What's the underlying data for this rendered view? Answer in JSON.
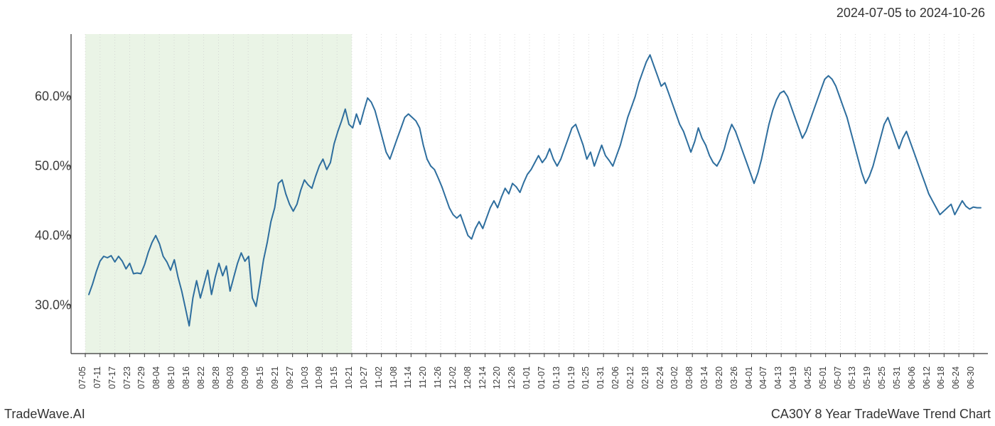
{
  "header": {
    "date_range": "2024-07-05 to 2024-10-26"
  },
  "footer": {
    "left": "TradeWave.AI",
    "right": "CA30Y 8 Year TradeWave Trend Chart"
  },
  "chart": {
    "type": "line",
    "background_color": "#ffffff",
    "line_color": "#2e6e9e",
    "line_width": 2.0,
    "highlight": {
      "fill": "#dfeed8",
      "opacity": 0.65,
      "x_start_index": 0,
      "x_end_index": 18
    },
    "axis": {
      "spine_color": "#333333",
      "spine_width": 1.2,
      "show_top": false,
      "show_right": false,
      "grid_color": "#cfcfcf",
      "grid_dash": "1,3",
      "grid_width": 0.8
    },
    "y": {
      "min": 23.0,
      "max": 69.0,
      "ticks": [
        30.0,
        40.0,
        50.0,
        60.0
      ],
      "tick_labels": [
        "30.0%",
        "40.0%",
        "50.0%",
        "60.0%"
      ],
      "label_fontsize": 18,
      "label_color": "#3b3b3b"
    },
    "x": {
      "labels": [
        "07-05",
        "07-11",
        "07-17",
        "07-23",
        "07-29",
        "08-04",
        "08-10",
        "08-16",
        "08-22",
        "08-28",
        "09-03",
        "09-09",
        "09-15",
        "09-21",
        "09-27",
        "10-03",
        "10-09",
        "10-15",
        "10-21",
        "10-27",
        "11-02",
        "11-08",
        "11-14",
        "11-20",
        "11-26",
        "12-02",
        "12-08",
        "12-14",
        "12-20",
        "12-26",
        "01-01",
        "01-07",
        "01-13",
        "01-19",
        "01-25",
        "01-31",
        "02-06",
        "02-12",
        "02-18",
        "02-24",
        "03-02",
        "03-08",
        "03-14",
        "03-20",
        "03-26",
        "04-01",
        "04-07",
        "04-13",
        "04-19",
        "04-25",
        "05-01",
        "05-07",
        "05-13",
        "05-19",
        "05-25",
        "05-31",
        "06-06",
        "06-12",
        "06-18",
        "06-24",
        "06-30"
      ],
      "label_fontsize": 12.5,
      "label_color": "#3b3b3b",
      "rotation": -90
    },
    "series": {
      "values": [
        31.5,
        33.0,
        34.8,
        36.3,
        37.0,
        36.8,
        37.1,
        36.2,
        37.0,
        36.3,
        35.2,
        36.0,
        34.5,
        34.6,
        34.5,
        35.8,
        37.6,
        39.0,
        40.0,
        38.8,
        37.0,
        36.2,
        35.0,
        36.5,
        34.0,
        32.0,
        29.5,
        27.0,
        31.0,
        33.5,
        31.0,
        33.0,
        35.0,
        31.5,
        34.0,
        36.0,
        34.2,
        35.6,
        32.0,
        34.0,
        36.0,
        37.5,
        36.3,
        37.0,
        31.0,
        29.8,
        33.0,
        36.5,
        39.0,
        42.0,
        44.0,
        47.5,
        48.0,
        46.0,
        44.5,
        43.5,
        44.5,
        46.5,
        48.0,
        47.3,
        46.8,
        48.5,
        50.0,
        51.0,
        49.5,
        50.5,
        53.2,
        55.0,
        56.5,
        58.2,
        56.0,
        55.5,
        57.5,
        56.0,
        58.0,
        59.8,
        59.2,
        58.0,
        56.0,
        54.0,
        52.0,
        51.0,
        52.5,
        54.0,
        55.5,
        57.0,
        57.5,
        57.0,
        56.5,
        55.5,
        53.0,
        51.0,
        50.0,
        49.5,
        48.3,
        47.0,
        45.5,
        44.0,
        43.0,
        42.5,
        43.0,
        41.5,
        40.0,
        39.5,
        41.0,
        42.0,
        41.0,
        42.5,
        44.0,
        45.0,
        44.0,
        45.5,
        46.8,
        46.0,
        47.5,
        47.0,
        46.2,
        47.6,
        48.8,
        49.5,
        50.5,
        51.5,
        50.5,
        51.2,
        52.5,
        51.0,
        50.0,
        51.0,
        52.5,
        54.0,
        55.5,
        56.0,
        54.5,
        53.0,
        51.0,
        52.0,
        50.0,
        51.5,
        53.0,
        51.5,
        50.8,
        50.0,
        51.5,
        53.0,
        55.0,
        57.0,
        58.5,
        60.0,
        62.0,
        63.5,
        65.0,
        66.0,
        64.5,
        63.0,
        61.5,
        62.0,
        60.5,
        59.0,
        57.5,
        56.0,
        55.0,
        53.5,
        52.0,
        53.5,
        55.5,
        54.0,
        53.0,
        51.5,
        50.5,
        50.0,
        51.0,
        52.5,
        54.5,
        56.0,
        55.0,
        53.5,
        52.0,
        50.5,
        49.0,
        47.5,
        49.0,
        51.0,
        53.5,
        56.0,
        58.0,
        59.5,
        60.5,
        60.8,
        60.0,
        58.5,
        57.0,
        55.5,
        54.0,
        55.0,
        56.5,
        58.0,
        59.5,
        61.0,
        62.5,
        63.0,
        62.5,
        61.5,
        60.0,
        58.5,
        57.0,
        55.0,
        53.0,
        51.0,
        49.0,
        47.5,
        48.5,
        50.0,
        52.0,
        54.0,
        56.0,
        57.0,
        55.5,
        54.0,
        52.5,
        54.0,
        55.0,
        53.5,
        52.0,
        50.5,
        49.0,
        47.5,
        46.0,
        45.0,
        44.0,
        43.0,
        43.5,
        44.0,
        44.5,
        43.0,
        44.0,
        45.0,
        44.2,
        43.8,
        44.1,
        44.0,
        44.0
      ]
    }
  }
}
